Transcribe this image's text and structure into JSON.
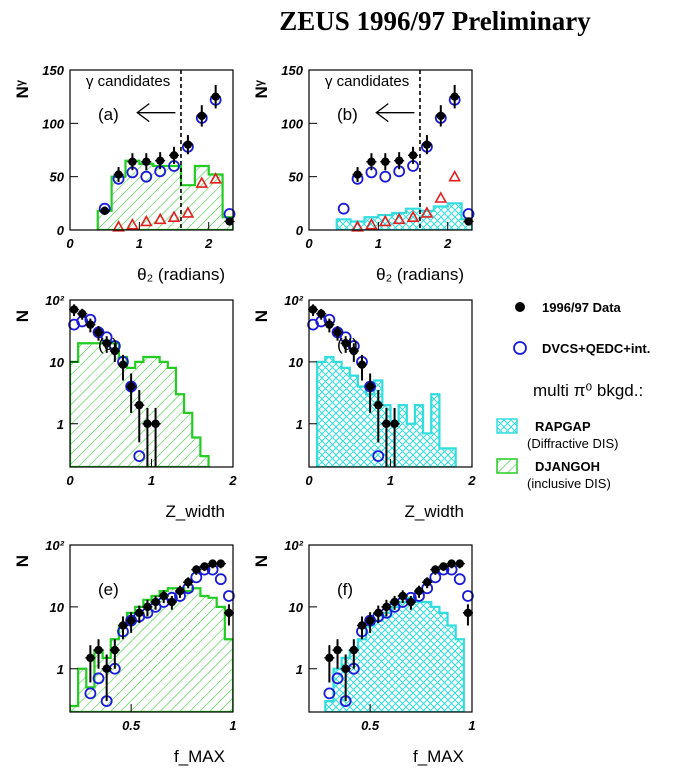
{
  "figure_title": "ZEUS 1996/97 Preliminary",
  "colors": {
    "data": "#000000",
    "dvcs": "#1a1ad6",
    "red": "#e02020",
    "djangoh": "#22cc22",
    "rapgap": "#33dddd"
  },
  "legend": {
    "data": "1996/97 Data",
    "dvcs": "DVCS+QEDC+int.",
    "bkgd_title": "multi π⁰ bkgd.:",
    "rapgap": "RAPGAP",
    "rapgap_sub": "(Diffractive DIS)",
    "djangoh": "DJANGOH",
    "djangoh_sub": "(inclusive DIS)"
  },
  "chart_data": [
    {
      "type": "histogram",
      "panel": "(a)",
      "annotation": "γ candidates",
      "ylabel": "Nᵞ",
      "xlabel": "θ₂ (radians)",
      "yscale": "linear",
      "xlim": [
        0,
        2.35
      ],
      "ylim": [
        0,
        150
      ],
      "xticks": [
        "0",
        "1",
        "2"
      ],
      "yticks": [
        "0",
        "50",
        "100",
        "150"
      ],
      "cut_line": 1.6,
      "arrow": "left",
      "mc": "djangoh",
      "hist_edges": [
        0.4,
        0.6,
        0.8,
        1.0,
        1.2,
        1.4,
        1.6,
        1.8,
        2.0,
        2.2,
        2.35
      ],
      "hist_values": [
        18,
        50,
        65,
        62,
        60,
        60,
        42,
        60,
        52,
        12
      ],
      "data_x": [
        0.5,
        0.7,
        0.9,
        1.1,
        1.3,
        1.5,
        1.7,
        1.9,
        2.1,
        2.3
      ],
      "data_y": [
        18,
        52,
        64,
        64,
        65,
        70,
        80,
        107,
        125,
        8
      ],
      "data_err": [
        4,
        7,
        8,
        8,
        8,
        8,
        9,
        10,
        11,
        3
      ],
      "dvcs_x": [
        0.5,
        0.7,
        0.9,
        1.1,
        1.3,
        1.5,
        1.7,
        1.9,
        2.1,
        2.3
      ],
      "dvcs_y": [
        20,
        48,
        54,
        50,
        55,
        60,
        78,
        105,
        122,
        15
      ],
      "red_x": [
        0.7,
        0.9,
        1.1,
        1.3,
        1.5,
        1.7,
        1.9,
        2.1
      ],
      "red_y": [
        3,
        5,
        8,
        10,
        12,
        16,
        44,
        48
      ]
    },
    {
      "type": "histogram",
      "panel": "(b)",
      "annotation": "γ candidates",
      "ylabel": "Nᵞ",
      "xlabel": "θ₂ (radians)",
      "yscale": "linear",
      "xlim": [
        0,
        2.35
      ],
      "ylim": [
        0,
        150
      ],
      "xticks": [
        "0",
        "1",
        "2"
      ],
      "yticks": [
        "0",
        "50",
        "100",
        "150"
      ],
      "cut_line": 1.6,
      "arrow": "left",
      "mc": "rapgap",
      "hist_edges": [
        0.4,
        0.6,
        0.8,
        1.0,
        1.2,
        1.4,
        1.6,
        1.8,
        2.0,
        2.2,
        2.35
      ],
      "hist_values": [
        10,
        8,
        12,
        14,
        16,
        20,
        18,
        22,
        25,
        10
      ],
      "data_x": [
        0.7,
        0.9,
        1.1,
        1.3,
        1.5,
        1.7,
        1.9,
        2.1,
        2.3
      ],
      "data_y": [
        52,
        64,
        64,
        65,
        70,
        80,
        107,
        125,
        8
      ],
      "data_err": [
        7,
        8,
        8,
        8,
        8,
        9,
        10,
        11,
        3
      ],
      "dvcs_x": [
        0.5,
        0.7,
        0.9,
        1.1,
        1.3,
        1.5,
        1.7,
        1.9,
        2.1,
        2.3
      ],
      "dvcs_y": [
        20,
        48,
        54,
        50,
        55,
        60,
        78,
        105,
        122,
        15
      ],
      "red_x": [
        0.7,
        0.9,
        1.1,
        1.3,
        1.5,
        1.7,
        1.9,
        2.1
      ],
      "red_y": [
        3,
        5,
        8,
        10,
        12,
        16,
        30,
        50
      ]
    },
    {
      "type": "histogram",
      "panel": "(c)",
      "ylabel": "N",
      "xlabel": "Z_width",
      "yscale": "log",
      "xlim": [
        0,
        2
      ],
      "ylim": [
        0.2,
        100
      ],
      "xticks": [
        "0",
        "1",
        "2"
      ],
      "yticks": [
        "1",
        "10",
        "10²"
      ],
      "mc": "djangoh",
      "hist_edges": [
        0,
        0.1,
        0.2,
        0.3,
        0.4,
        0.5,
        0.6,
        0.7,
        0.8,
        0.9,
        1.0,
        1.1,
        1.2,
        1.3,
        1.4,
        1.5,
        1.6,
        1.7
      ],
      "hist_values": [
        10,
        20,
        20,
        20,
        22,
        20,
        12,
        8,
        10,
        12,
        12,
        10,
        8,
        3,
        1.5,
        0.6,
        0.3
      ],
      "data_x": [
        0.05,
        0.15,
        0.25,
        0.35,
        0.45,
        0.55,
        0.65,
        0.75,
        0.85,
        0.95,
        1.05
      ],
      "data_y": [
        70,
        60,
        40,
        30,
        20,
        15,
        9,
        4,
        2,
        1,
        1
      ],
      "data_err": [
        15,
        12,
        10,
        8,
        6,
        5,
        4,
        2.5,
        1.5,
        0.8,
        0.8
      ],
      "dvcs_x": [
        0.05,
        0.15,
        0.25,
        0.35,
        0.45,
        0.55,
        0.65,
        0.75,
        0.85
      ],
      "dvcs_y": [
        40,
        45,
        48,
        30,
        25,
        18,
        10,
        4,
        0.3
      ]
    },
    {
      "type": "histogram",
      "panel": "(d)",
      "ylabel": "N",
      "xlabel": "Z_width",
      "yscale": "log",
      "xlim": [
        0,
        2
      ],
      "ylim": [
        0.2,
        100
      ],
      "xticks": [
        "0",
        "1",
        "2"
      ],
      "yticks": [
        "1",
        "10",
        "10²"
      ],
      "mc": "rapgap",
      "hist_edges": [
        0.1,
        0.2,
        0.3,
        0.4,
        0.5,
        0.6,
        0.7,
        0.8,
        0.9,
        1.0,
        1.1,
        1.2,
        1.3,
        1.4,
        1.5,
        1.6,
        1.7,
        1.8
      ],
      "hist_values": [
        10,
        12,
        10,
        8,
        6,
        4,
        3,
        5,
        2,
        1,
        2,
        1,
        2,
        0.7,
        3,
        0.4,
        0.4
      ],
      "data_x": [
        0.05,
        0.15,
        0.25,
        0.35,
        0.45,
        0.55,
        0.65,
        0.75,
        0.85,
        0.95,
        1.05
      ],
      "data_y": [
        70,
        60,
        40,
        30,
        20,
        15,
        9,
        4,
        2,
        1,
        1
      ],
      "data_err": [
        15,
        12,
        10,
        8,
        6,
        5,
        4,
        2.5,
        1.5,
        0.8,
        0.8
      ],
      "dvcs_x": [
        0.05,
        0.15,
        0.25,
        0.35,
        0.45,
        0.55,
        0.65,
        0.75,
        0.85
      ],
      "dvcs_y": [
        40,
        45,
        48,
        30,
        25,
        18,
        10,
        4,
        0.3
      ]
    },
    {
      "type": "histogram",
      "panel": "(e)",
      "ylabel": "N",
      "xlabel": "f_MAX",
      "yscale": "log",
      "xlim": [
        0.2,
        1
      ],
      "ylim": [
        0.2,
        100
      ],
      "xticks": [
        "0.5",
        "1"
      ],
      "yticks": [
        "1",
        "10",
        "10²"
      ],
      "mc": "djangoh",
      "hist_edges": [
        0.2,
        0.24,
        0.28,
        0.32,
        0.36,
        0.4,
        0.44,
        0.48,
        0.52,
        0.56,
        0.6,
        0.64,
        0.68,
        0.72,
        0.76,
        0.8,
        0.84,
        0.88,
        0.92,
        0.96,
        1.0
      ],
      "hist_values": [
        0.25,
        1,
        0.5,
        2,
        1.5,
        3,
        5,
        8,
        10,
        13,
        15,
        18,
        20,
        20,
        18,
        20,
        15,
        14,
        10,
        3
      ],
      "data_x": [
        0.3,
        0.34,
        0.38,
        0.42,
        0.46,
        0.5,
        0.54,
        0.58,
        0.62,
        0.66,
        0.7,
        0.74,
        0.78,
        0.82,
        0.86,
        0.9,
        0.94,
        0.98
      ],
      "data_y": [
        1.5,
        2,
        1,
        2,
        5,
        6,
        8,
        10,
        12,
        15,
        12,
        18,
        25,
        40,
        45,
        50,
        50,
        8
      ],
      "data_err": [
        0.9,
        1,
        0.7,
        1,
        2,
        2.2,
        2.5,
        3,
        3,
        3.5,
        3,
        4,
        5,
        7,
        7,
        8,
        8,
        3
      ],
      "dvcs_x": [
        0.3,
        0.34,
        0.38,
        0.42,
        0.46,
        0.5,
        0.54,
        0.58,
        0.62,
        0.66,
        0.7,
        0.74,
        0.78,
        0.82,
        0.86,
        0.9,
        0.94,
        0.98
      ],
      "dvcs_y": [
        0.4,
        0.7,
        0.3,
        1,
        4,
        6,
        7,
        8,
        10,
        12,
        14,
        15,
        20,
        30,
        40,
        40,
        28,
        15
      ]
    },
    {
      "type": "histogram",
      "panel": "(f)",
      "ylabel": "N",
      "xlabel": "f_MAX",
      "yscale": "log",
      "xlim": [
        0.2,
        1
      ],
      "ylim": [
        0.2,
        100
      ],
      "xticks": [
        "0.5",
        "1"
      ],
      "yticks": [
        "1",
        "10",
        "10²"
      ],
      "mc": "rapgap",
      "hist_edges": [
        0.28,
        0.32,
        0.36,
        0.4,
        0.44,
        0.48,
        0.52,
        0.56,
        0.6,
        0.64,
        0.68,
        0.72,
        0.76,
        0.8,
        0.84,
        0.88,
        0.92,
        0.96
      ],
      "hist_values": [
        0.3,
        1,
        1.5,
        2,
        3,
        5,
        6,
        8,
        10,
        12,
        14,
        12,
        12,
        10,
        8,
        5,
        3
      ],
      "data_x": [
        0.3,
        0.34,
        0.38,
        0.42,
        0.46,
        0.5,
        0.54,
        0.58,
        0.62,
        0.66,
        0.7,
        0.74,
        0.78,
        0.82,
        0.86,
        0.9,
        0.94,
        0.98
      ],
      "data_y": [
        1.5,
        2,
        1,
        2,
        5,
        6,
        8,
        10,
        12,
        15,
        12,
        18,
        25,
        40,
        45,
        50,
        50,
        8
      ],
      "data_err": [
        0.9,
        1,
        0.7,
        1,
        2,
        2.2,
        2.5,
        3,
        3,
        3.5,
        3,
        4,
        5,
        7,
        7,
        8,
        8,
        3
      ],
      "dvcs_x": [
        0.3,
        0.34,
        0.38,
        0.42,
        0.46,
        0.5,
        0.54,
        0.58,
        0.62,
        0.66,
        0.7,
        0.74,
        0.78,
        0.82,
        0.86,
        0.9,
        0.94,
        0.98
      ],
      "dvcs_y": [
        0.4,
        0.7,
        0.3,
        1,
        4,
        6,
        7,
        8,
        10,
        12,
        14,
        15,
        20,
        30,
        40,
        40,
        28,
        15
      ]
    }
  ]
}
